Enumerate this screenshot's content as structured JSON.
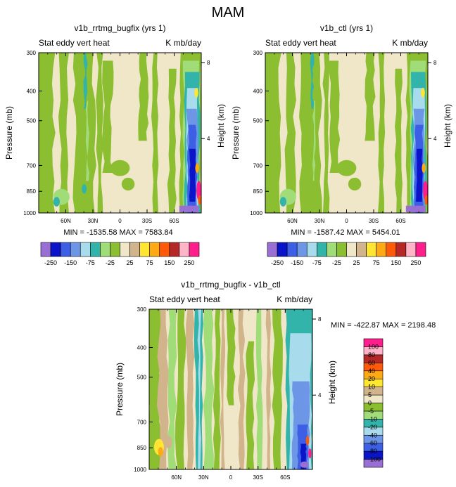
{
  "page_title": "MAM",
  "chart_data": [
    {
      "type": "heatmap",
      "title": "v1b_rrtmg_bugfix (yrs 1)",
      "left_string": "Stat eddy vert heat",
      "right_string": "K mb/day",
      "ylabel": "Pressure (mb)",
      "ylabel_right": "Height (km)",
      "pressure_ticks": [
        "300",
        "400",
        "500",
        "700",
        "850",
        "1000"
      ],
      "height_ticks": [
        "8",
        "4"
      ],
      "lat_ticks": [
        "60N",
        "30N",
        "0",
        "30S",
        "60S"
      ],
      "stats": "MIN = -1535.58   MAX = 7583.84",
      "field": "full"
    },
    {
      "type": "heatmap",
      "title": "v1b_ctl (yrs 1)",
      "left_string": "Stat eddy vert heat",
      "right_string": "K mb/day",
      "ylabel": "Pressure (mb)",
      "ylabel_right": "Height (km)",
      "pressure_ticks": [
        "300",
        "400",
        "500",
        "700",
        "850",
        "1000"
      ],
      "height_ticks": [
        "8",
        "4"
      ],
      "lat_ticks": [
        "60N",
        "30N",
        "0",
        "30S",
        "60S"
      ],
      "stats": "MIN = -1587.42   MAX = 5454.01",
      "field": "full"
    },
    {
      "type": "heatmap",
      "title": "v1b_rrtmg_bugfix - v1b_ctl",
      "left_string": "Stat eddy vert heat",
      "right_string": "K mb/day",
      "ylabel": "Pressure (mb)",
      "ylabel_right": "Height (km)",
      "pressure_ticks": [
        "300",
        "400",
        "500",
        "700",
        "850",
        "1000"
      ],
      "height_ticks": [
        "8",
        "4"
      ],
      "lat_ticks": [
        "60N",
        "30N",
        "0",
        "30S",
        "60S"
      ],
      "stats": "MIN = -422.87   MAX = 2198.48",
      "field": "diff"
    }
  ],
  "colorbar_full": {
    "colors": [
      "#9a6fd4",
      "#0a14c8",
      "#3c5fe6",
      "#6e96e6",
      "#a8dcec",
      "#32b4aa",
      "#a0dc78",
      "#8cbe32",
      "#f0e6c8",
      "#d2b48c",
      "#ffe632",
      "#ffaa14",
      "#ff5a0a",
      "#b42828",
      "#ffb4c8",
      "#ff1e8c"
    ],
    "labels": [
      "-250",
      "-150",
      "-75",
      "-25",
      "25",
      "75",
      "150",
      "250"
    ]
  },
  "colorbar_diff": {
    "colors": [
      "#9a6fd4",
      "#0a14c8",
      "#3c5fe6",
      "#6e96e6",
      "#a8dcec",
      "#32b4aa",
      "#a0dc78",
      "#8cbe32",
      "#f0e6c8",
      "#d2b48c",
      "#ffe632",
      "#ffaa14",
      "#ff5a0a",
      "#b42828",
      "#ffb4c8",
      "#ff1e8c"
    ],
    "labels": [
      "-100",
      "-80",
      "-60",
      "-40",
      "-20",
      "-10",
      "-5",
      "0",
      "5",
      "10",
      "20",
      "40",
      "60",
      "80",
      "100"
    ]
  }
}
